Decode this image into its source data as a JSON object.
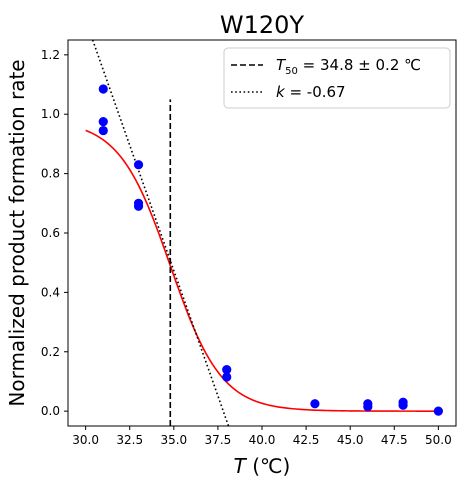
{
  "chart_data": {
    "type": "scatter",
    "title": "W120Y",
    "xlabel": {
      "symbol": "T",
      "unit": " (℃)"
    },
    "ylabel": "Normalized product formation rate",
    "xlim": [
      29.0,
      51.0
    ],
    "ylim": [
      -0.05,
      1.25
    ],
    "xticks": [
      "30.0",
      "32.5",
      "35.0",
      "37.5",
      "40.0",
      "42.5",
      "45.0",
      "47.5",
      "50.0"
    ],
    "yticks": [
      "0.0",
      "0.2",
      "0.4",
      "0.6",
      "0.8",
      "1.0",
      "1.2"
    ],
    "grid": false,
    "legend_position": "top-right",
    "series": [
      {
        "kind": "points",
        "color": "#0000ff",
        "x": [
          31,
          31,
          31,
          33,
          33,
          33,
          38,
          38,
          43,
          46,
          46,
          48,
          48,
          50
        ],
        "y": [
          1.085,
          0.975,
          0.945,
          0.83,
          0.7,
          0.69,
          0.14,
          0.115,
          0.025,
          0.025,
          0.015,
          0.03,
          0.02,
          0.0
        ]
      },
      {
        "kind": "sigmoid-fit",
        "color": "#ff0000",
        "x_range": [
          30.0,
          50.0
        ],
        "top": 0.98,
        "t50": 34.8,
        "slope_scale": 1.45
      },
      {
        "kind": "vertical-line",
        "style": "dashed",
        "color": "#000000",
        "x": 34.8,
        "y_range": [
          -0.05,
          1.05
        ],
        "legend": {
          "prefix": "T",
          "sub": "50",
          "text": " = 34.8 ± 0.2 ℃"
        }
      },
      {
        "kind": "tangent-line",
        "style": "dotted",
        "color": "#000000",
        "x_range": [
          30.4,
          38.1
        ],
        "y_range": [
          1.25,
          -0.05
        ],
        "legend": {
          "prefix": "k",
          "text": " = -0.67"
        }
      }
    ]
  }
}
